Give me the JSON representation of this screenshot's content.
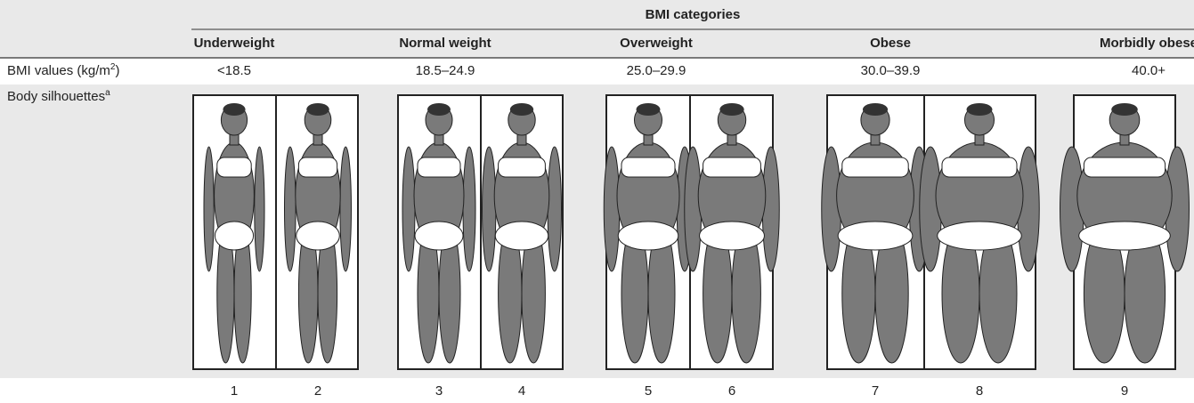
{
  "header": {
    "title": "BMI categories",
    "categories": [
      "Underweight",
      "Normal weight",
      "Overweight",
      "Obese",
      "Morbidly obese"
    ]
  },
  "rows": {
    "bmi_label": "BMI values (kg/m",
    "bmi_label_sup": "2",
    "bmi_label_end": ")",
    "bmi_values": [
      "<18.5",
      "18.5–24.9",
      "25.0–29.9",
      "30.0–39.9",
      "40.0+"
    ],
    "silhouette_label": "Body silhouettes",
    "silhouette_label_sup": "a",
    "silhouette_numbers": [
      1,
      2,
      3,
      4,
      5,
      6,
      7,
      8,
      9
    ]
  }
}
